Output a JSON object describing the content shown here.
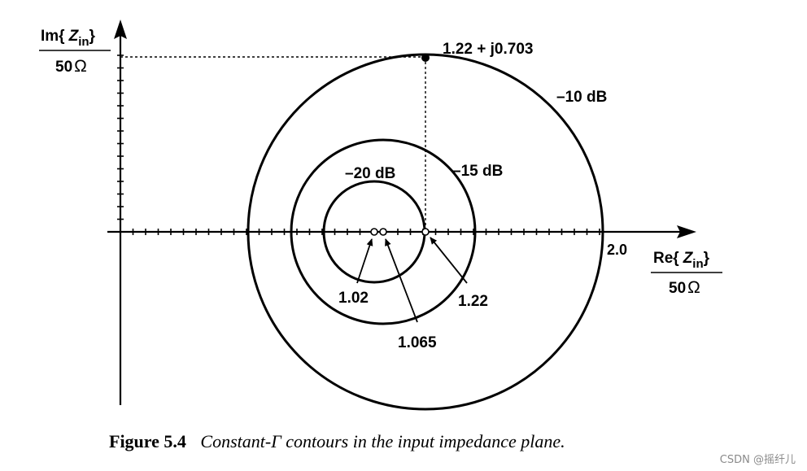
{
  "axes": {
    "y_label_top": "Im{",
    "y_label_var": "Z",
    "y_label_sub": "in",
    "y_label_close": "}",
    "y_label_bottom": "50",
    "x_label_top": "Re{",
    "x_label_var": "Z",
    "x_label_sub": "in",
    "x_label_close": "}",
    "x_label_bottom": "50",
    "omega": "Ω",
    "x_mark_value": "2.0"
  },
  "contours": [
    {
      "label": "–10 dB",
      "center": 1.22,
      "radius": 0.703
    },
    {
      "label": "–15 dB",
      "center": 1.065,
      "radius": 0.365
    },
    {
      "label": "–20 dB",
      "center": 1.02,
      "radius": 0.2
    }
  ],
  "points": {
    "top_label": "1.22 + j0.703",
    "markers": [
      "1.02",
      "1.065",
      "1.22"
    ]
  },
  "caption": {
    "number": "Figure 5.4",
    "text": "Constant-Γ contours in the input impedance plane."
  },
  "watermark": "CSDN @摇纤儿"
}
